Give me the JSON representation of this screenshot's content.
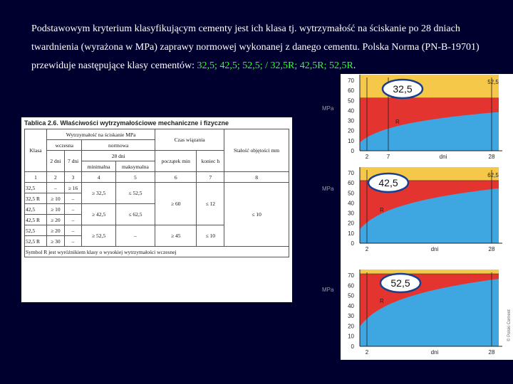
{
  "intro": {
    "text": "Podstawowym kryterium klasyfikującym cementy jest ich klasa tj. wytrzymałość na ściskanie po 28 dniach twardnienia (wyrażona w MPa) zaprawy normowej wykonanej z danego cementu. Polska Norma (PN-B-19701) przewiduje następujące klasy cementów: ",
    "classes": "32,5; 42,5; 52,5; / 32,5R; 42,5R; 52,5R",
    "end": "."
  },
  "table": {
    "title": "Tablica 2.6. Właściwości wytrzymałościowe mechaniczne i fizyczne",
    "header": {
      "class": "Klasa",
      "strength": "Wytrzymałość na ściskanie MPa",
      "setting": "Czas wiązania",
      "soundness": "Stałość objętości mm",
      "early": "wczesna",
      "standard": "normowa",
      "day2": "2 dni",
      "day7": "7 dni",
      "day28": "28 dni",
      "start": "początek min",
      "end": "koniec h",
      "min": "minimalna",
      "max": "maksymalna",
      "numbers": [
        "1",
        "2",
        "3",
        "4",
        "5",
        "6",
        "7",
        "8"
      ]
    },
    "rows": [
      [
        "32,5",
        "–",
        "≥ 16",
        "≥ 32,5",
        "≤ 52,5",
        "≥ 60",
        "≤ 12",
        "≤ 10"
      ],
      [
        "32,5 R",
        "≥ 10",
        "–"
      ],
      [
        "42,5",
        "≥ 10",
        "–",
        "≥ 42,5",
        "≤ 62,5"
      ],
      [
        "42,5 R",
        "≥ 20",
        "–"
      ],
      [
        "52,5",
        "≥ 20",
        "–",
        "≥ 52,5",
        "–",
        "≥ 45",
        "≤ 10"
      ],
      [
        "52,5 R",
        "≥ 30",
        "–"
      ]
    ],
    "footnote": "Symbol R jest wyróżnikiem klasy o wysokiej wytrzymałości wczesnej"
  },
  "charts": [
    {
      "badge": "32,5",
      "upper": "52,5",
      "y_label": "MPa",
      "curve_label": "R",
      "yticks": [
        "70",
        "60",
        "50",
        "40",
        "30",
        "20",
        "10",
        "0"
      ],
      "xticks": [
        "2",
        "7",
        "28"
      ],
      "x_label": "dni"
    },
    {
      "badge": "42,5",
      "upper": "62,5",
      "y_label": "MPa",
      "curve_label": "R",
      "yticks": [
        "70",
        "60",
        "50",
        "40",
        "30",
        "20",
        "10",
        "0"
      ],
      "xticks": [
        "2",
        "28"
      ],
      "x_label": "dni"
    },
    {
      "badge": "52,5",
      "y_label": "MPa",
      "curve_label": "R",
      "yticks": [
        "70",
        "60",
        "50",
        "40",
        "30",
        "20",
        "10",
        "0"
      ],
      "xticks": [
        "2",
        "28"
      ],
      "x_label": "dni"
    }
  ],
  "credit": "© Polski Cement"
}
